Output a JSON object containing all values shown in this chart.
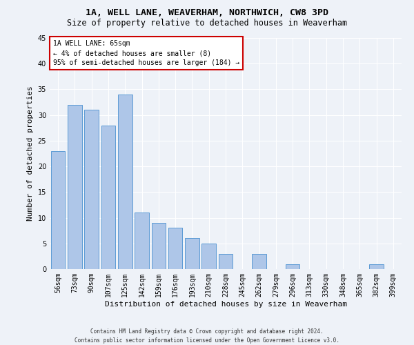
{
  "title": "1A, WELL LANE, WEAVERHAM, NORTHWICH, CW8 3PD",
  "subtitle": "Size of property relative to detached houses in Weaverham",
  "xlabel": "Distribution of detached houses by size in Weaverham",
  "ylabel": "Number of detached properties",
  "categories": [
    "56sqm",
    "73sqm",
    "90sqm",
    "107sqm",
    "125sqm",
    "142sqm",
    "159sqm",
    "176sqm",
    "193sqm",
    "210sqm",
    "228sqm",
    "245sqm",
    "262sqm",
    "279sqm",
    "296sqm",
    "313sqm",
    "330sqm",
    "348sqm",
    "365sqm",
    "382sqm",
    "399sqm"
  ],
  "values": [
    23,
    32,
    31,
    28,
    34,
    11,
    9,
    8,
    6,
    5,
    3,
    0,
    3,
    0,
    1,
    0,
    0,
    0,
    0,
    1,
    0
  ],
  "bar_color": "#aec6e8",
  "bar_edge_color": "#5b9bd5",
  "ylim": [
    0,
    45
  ],
  "yticks": [
    0,
    5,
    10,
    15,
    20,
    25,
    30,
    35,
    40,
    45
  ],
  "annotation_line1": "1A WELL LANE: 65sqm",
  "annotation_line2": "← 4% of detached houses are smaller (8)",
  "annotation_line3": "95% of semi-detached houses are larger (184) →",
  "annotation_box_color": "#ffffff",
  "annotation_box_edge": "#cc0000",
  "footer_line1": "Contains HM Land Registry data © Crown copyright and database right 2024.",
  "footer_line2": "Contains public sector information licensed under the Open Government Licence v3.0.",
  "background_color": "#eef2f8",
  "grid_color": "#ffffff",
  "title_fontsize": 9.5,
  "subtitle_fontsize": 8.5,
  "xlabel_fontsize": 8,
  "ylabel_fontsize": 8,
  "tick_fontsize": 7,
  "annotation_fontsize": 7,
  "footer_fontsize": 5.5
}
